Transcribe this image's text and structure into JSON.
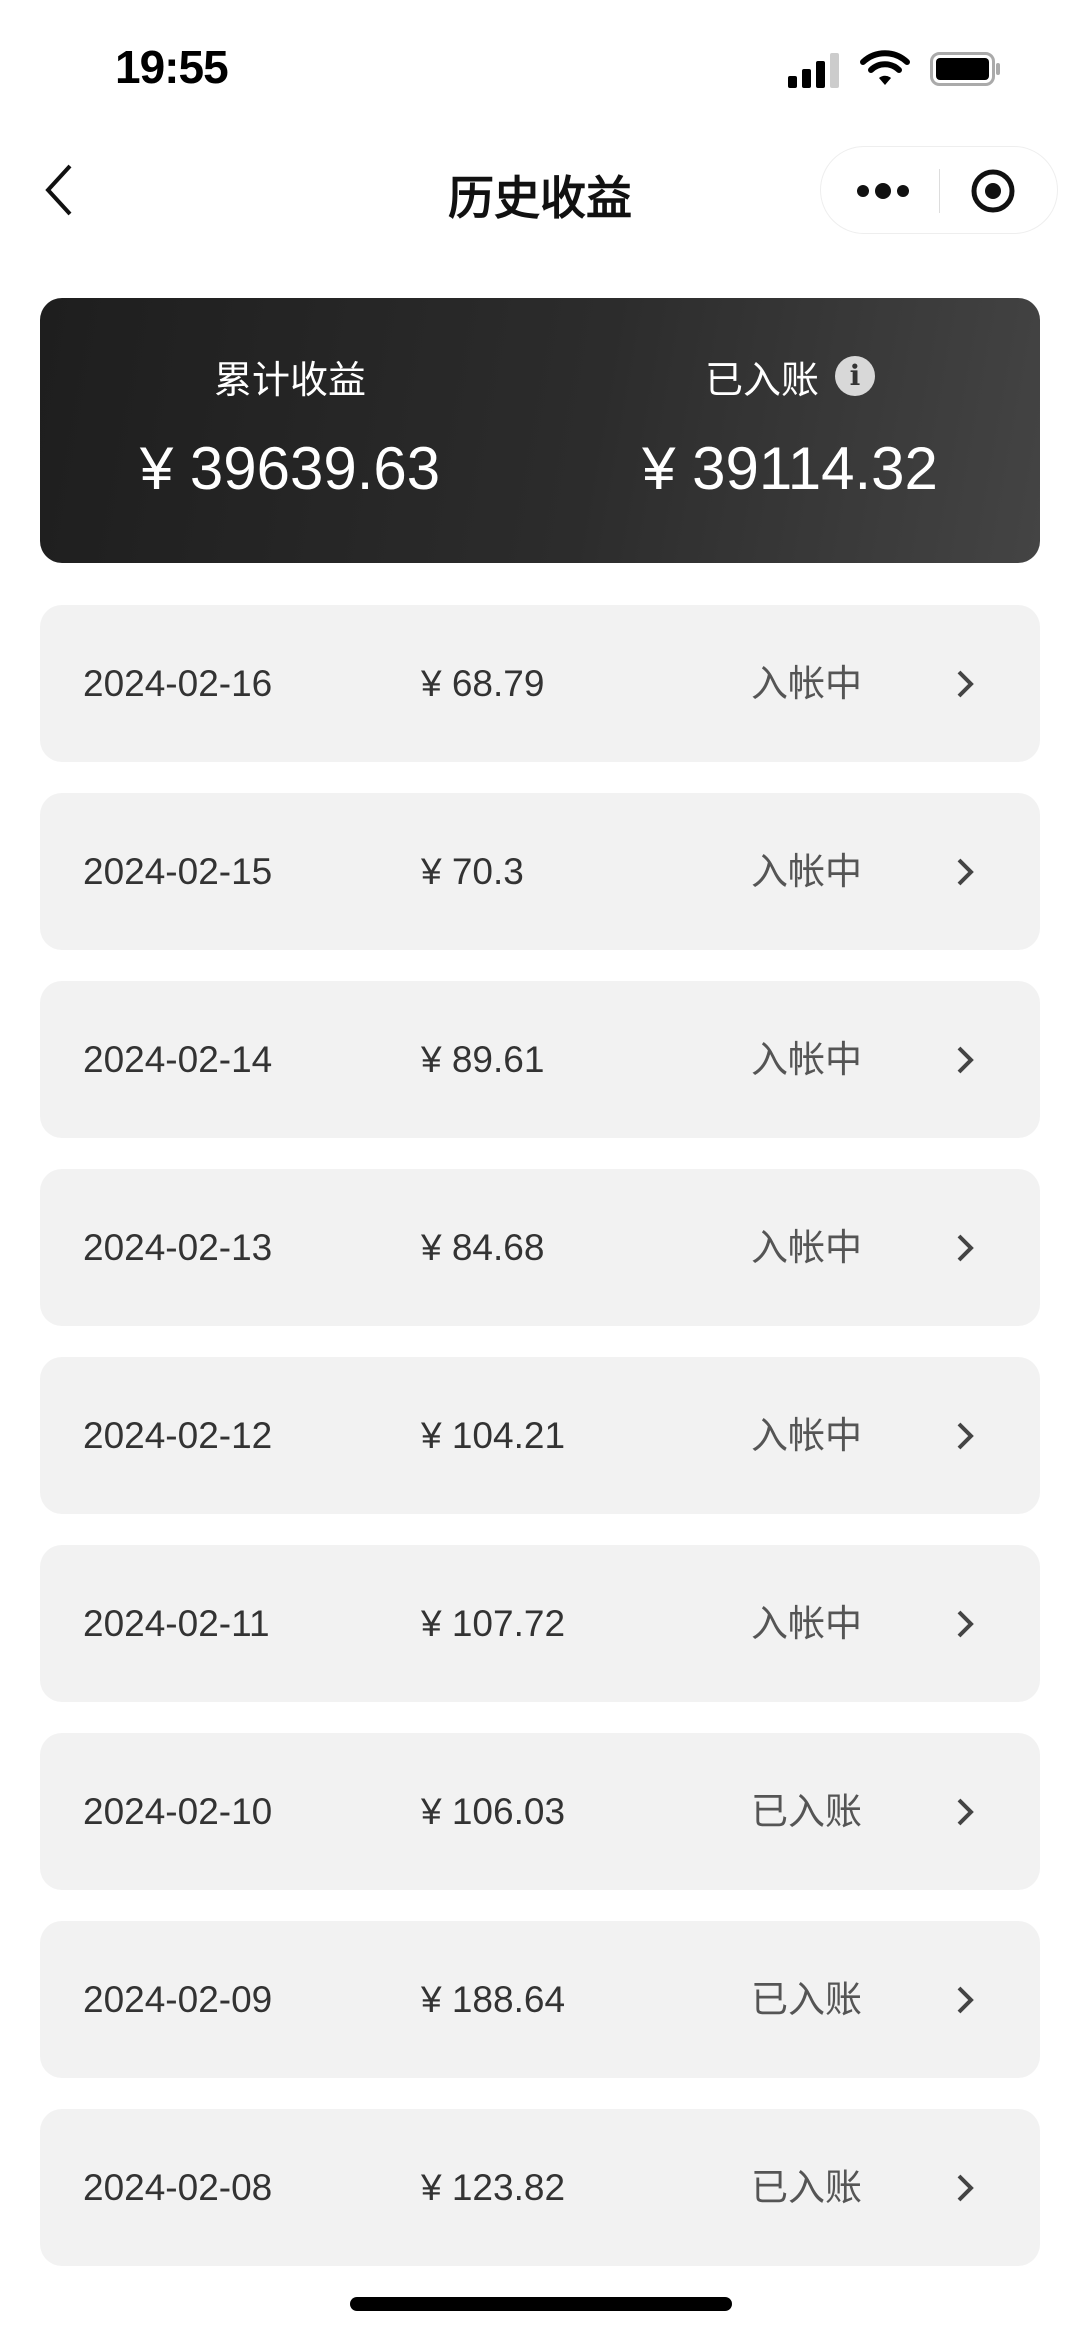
{
  "status_bar": {
    "time": "19:55",
    "icons": [
      "signal-icon",
      "wifi-icon",
      "battery-icon"
    ]
  },
  "nav": {
    "title": "历史收益",
    "back_icon": "chevron-left-icon",
    "more_icon": "more-dots-icon",
    "close_icon": "target-circle-icon"
  },
  "summary": {
    "total_label": "累计收益",
    "total_value": "¥ 39639.63",
    "settled_label": "已入账",
    "settled_value": "¥ 39114.32",
    "info_icon": "info-icon"
  },
  "records": [
    {
      "date": "2024-02-16",
      "amount": "¥ 68.79",
      "status": "入帐中"
    },
    {
      "date": "2024-02-15",
      "amount": "¥ 70.3",
      "status": "入帐中"
    },
    {
      "date": "2024-02-14",
      "amount": "¥ 89.61",
      "status": "入帐中"
    },
    {
      "date": "2024-02-13",
      "amount": "¥ 84.68",
      "status": "入帐中"
    },
    {
      "date": "2024-02-12",
      "amount": "¥ 104.21",
      "status": "入帐中"
    },
    {
      "date": "2024-02-11",
      "amount": "¥ 107.72",
      "status": "入帐中"
    },
    {
      "date": "2024-02-10",
      "amount": "¥ 106.03",
      "status": "已入账"
    },
    {
      "date": "2024-02-09",
      "amount": "¥ 188.64",
      "status": "已入账"
    },
    {
      "date": "2024-02-08",
      "amount": "¥ 123.82",
      "status": "已入账"
    }
  ]
}
